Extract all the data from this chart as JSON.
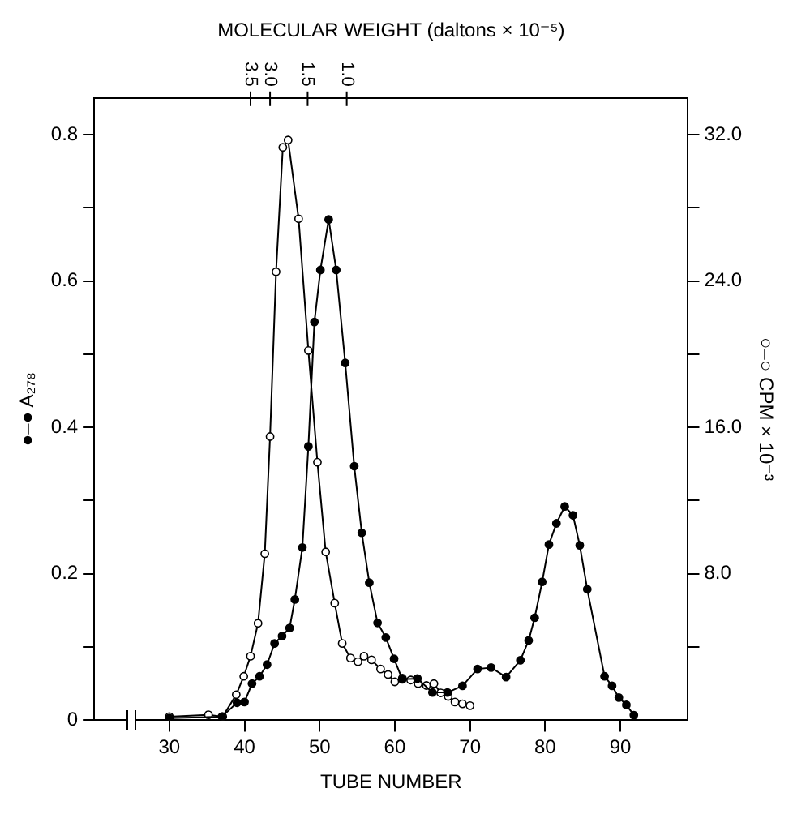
{
  "chart_data": {
    "type": "line",
    "xlabel": "TUBE NUMBER",
    "ylabel": "●–● A₂₇₈",
    "y2label": "○–○ CPM × 10⁻³",
    "x2label": "MOLECULAR WEIGHT (daltons × 10⁻⁵)",
    "xlim": [
      20,
      99
    ],
    "xticks": [
      30,
      40,
      50,
      60,
      70,
      80,
      90
    ],
    "annotations": [
      {
        "text": "3.5",
        "x": 40.8
      },
      {
        "text": "3.0",
        "x": 43.4
      },
      {
        "text": "1.5",
        "x": 48.4
      },
      {
        "text": "1.0",
        "x": 53.6
      }
    ],
    "ylim": [
      0,
      0.85
    ],
    "yticks": [
      0,
      {
        "value": 0.1,
        "label": null
      },
      0.2,
      {
        "value": 0.3,
        "label": null
      },
      0.4,
      {
        "value": 0.5,
        "label": null
      },
      0.6,
      {
        "value": 0.7,
        "label": null
      },
      0.8
    ],
    "y2lim": [
      0,
      34
    ],
    "y2ticks": [
      {
        "value": 4,
        "label": null
      },
      {
        "value": 8,
        "label": "8.0"
      },
      {
        "value": 12,
        "label": null
      },
      {
        "value": 16,
        "label": "16.0"
      },
      {
        "value": 20,
        "label": null
      },
      {
        "value": 24,
        "label": "24.0"
      },
      {
        "value": 28,
        "label": null
      },
      {
        "value": 32,
        "label": "32.0"
      }
    ],
    "grid": false,
    "legend": false,
    "marker": "circle",
    "line_style": "solid",
    "series": [
      {
        "color": "#000000",
        "axis": "y",
        "x": [
          30,
          37,
          39,
          40,
          41,
          42,
          43,
          44,
          45,
          46,
          46.7,
          47.7,
          48.5,
          49.3,
          50.1,
          51.2,
          52.2,
          53.4,
          54.6,
          55.6,
          56.6,
          57.7,
          58.8,
          59.9,
          61,
          63,
          65,
          67,
          69,
          71,
          72.8,
          74.8,
          76.7,
          77.8,
          78.6,
          79.6,
          80.5,
          81.5,
          82.6,
          83.7,
          84.6,
          85.6,
          87.9,
          88.9,
          89.8,
          90.8,
          91.8
        ],
        "values": [
          0.003,
          0.005,
          0.024,
          0.025,
          0.05,
          0.06,
          0.076,
          0.105,
          0.115,
          0.126,
          0.165,
          0.236,
          0.374,
          0.544,
          0.615,
          0.684,
          0.615,
          0.488,
          0.347,
          0.256,
          0.188,
          0.133,
          0.113,
          0.084,
          0.056,
          0.057,
          0.038,
          0.038,
          0.047,
          0.07,
          0.072,
          0.059,
          0.082,
          0.109,
          0.14,
          0.189,
          0.24,
          0.269,
          0.292,
          0.28,
          0.239,
          0.179,
          0.06,
          0.047,
          0.031,
          0.021,
          0.007
        ]
      },
      {
        "color": "#000000",
        "axis": "y2",
        "x": [
          30,
          35.2,
          37.1,
          38.9,
          39.9,
          40.8,
          41.8,
          42.7,
          43.4,
          44.2,
          45.1,
          45.8,
          47.2,
          48.5,
          49.7,
          50.8,
          52,
          53,
          54.1,
          55.1,
          55.9,
          56.9,
          58.1,
          59.1,
          60,
          61,
          62.1,
          63.1,
          64.2,
          65.2,
          66.1,
          67.1,
          68,
          69,
          70
        ],
        "values": [
          0.2,
          0.3,
          0.2,
          1.4,
          2.4,
          3.5,
          5.3,
          9.1,
          15.5,
          24.5,
          31.3,
          31.7,
          27.4,
          20.2,
          14.1,
          9.2,
          6.4,
          4.2,
          3.4,
          3.2,
          3.5,
          3.3,
          2.8,
          2.5,
          2.1,
          2.3,
          2.2,
          2.0,
          1.9,
          2.0,
          1.5,
          1.3,
          1.0,
          0.9,
          0.8
        ]
      }
    ]
  }
}
